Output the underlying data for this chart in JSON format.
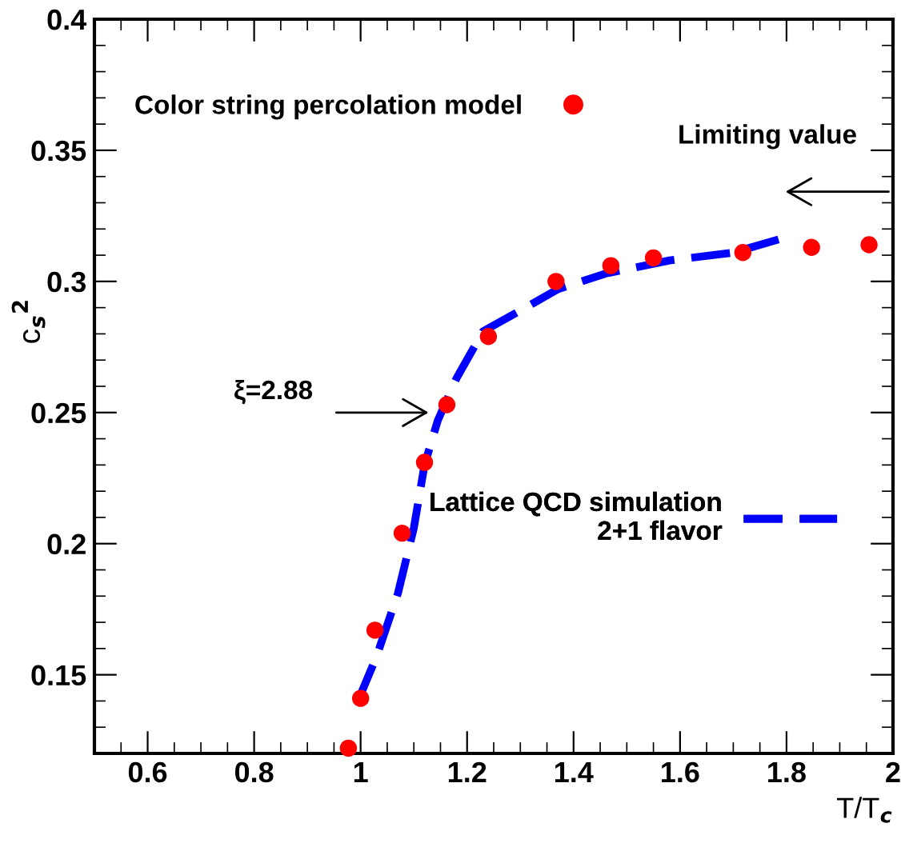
{
  "chart_data": {
    "type": "scatter",
    "xlabel": "T/T$_{c}$",
    "ylabel": "c$_{s}$$^{2}$",
    "xlim": [
      0.5,
      2.0
    ],
    "xticks": [
      0.6,
      0.8,
      1,
      1.2,
      1.4,
      1.6,
      1.8,
      2
    ],
    "ylim": [
      0.12,
      0.4
    ],
    "yticks": [
      0.15,
      0.2,
      0.25,
      0.3,
      0.35,
      0.4
    ],
    "grid": false,
    "legend": "top left",
    "series": [
      {
        "name": "Color string percolation model",
        "marker": "circle",
        "color": "#ff0000",
        "x": [
          0.977,
          1.0,
          1.027,
          1.078,
          1.12,
          1.162,
          1.24,
          1.367,
          1.47,
          1.55,
          1.718,
          1.847,
          1.955
        ],
        "values": [
          0.122,
          0.141,
          0.167,
          0.204,
          0.231,
          0.253,
          0.279,
          0.3,
          0.306,
          0.309,
          0.311,
          0.313,
          0.314
        ]
      },
      {
        "name": "Lattice QCD simulation\n2+1 flavor",
        "type": "line",
        "line_style": "dashed",
        "color": "#0000ff",
        "x": [
          0.995,
          1.03,
          1.07,
          1.1,
          1.12,
          1.145,
          1.18,
          1.23,
          1.31,
          1.37,
          1.46,
          1.58,
          1.7,
          1.785
        ],
        "values": [
          0.14,
          0.157,
          0.181,
          0.206,
          0.23,
          0.247,
          0.263,
          0.281,
          0.29,
          0.297,
          0.303,
          0.308,
          0.311,
          0.316
        ]
      }
    ],
    "annotations": [
      "Limiting value",
      {
        "text": "ξ=2.88",
        "x": 1.136,
        "y": 0.25
      }
    ]
  }
}
